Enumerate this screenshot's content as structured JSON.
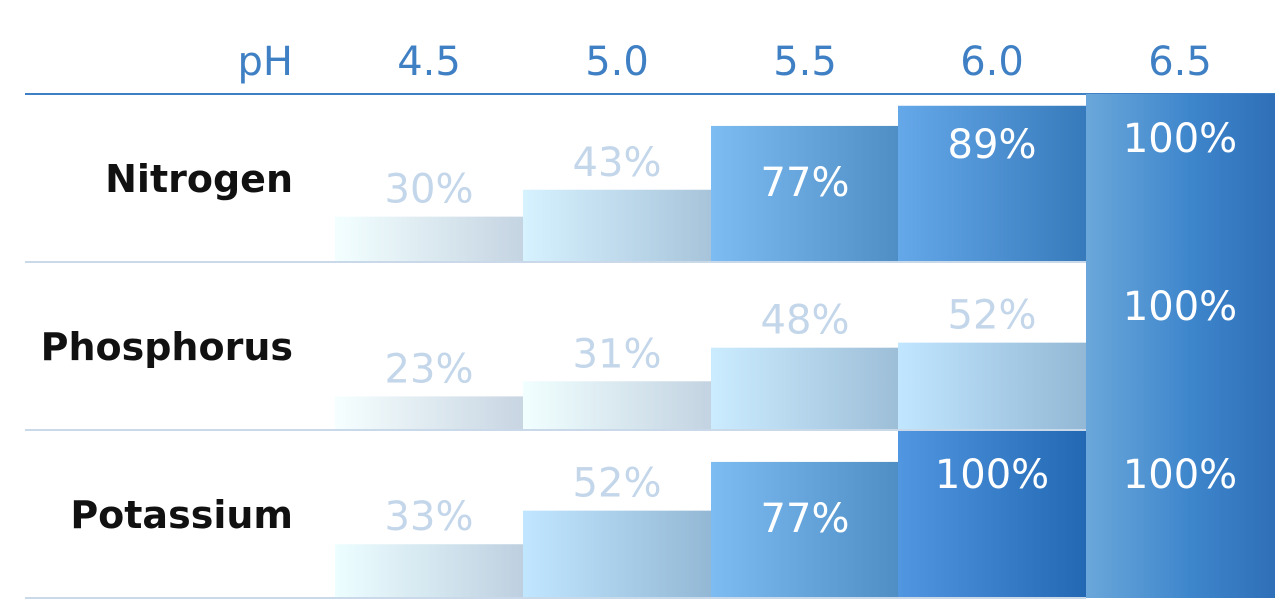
{
  "chart_data": {
    "type": "bar",
    "x_header": "pH",
    "categories": [
      "4.5",
      "5.0",
      "5.5",
      "6.0",
      "6.5"
    ],
    "series": [
      {
        "name": "Nitrogen",
        "values": [
          30,
          43,
          77,
          89,
          100
        ],
        "labels": [
          "30%",
          "43%",
          "77%",
          "89%",
          "100%"
        ]
      },
      {
        "name": "Phosphorus",
        "values": [
          23,
          31,
          48,
          52,
          100
        ],
        "labels": [
          "23%",
          "31%",
          "48%",
          "52%",
          "100%"
        ]
      },
      {
        "name": "Potassium",
        "values": [
          33,
          52,
          77,
          100,
          100
        ],
        "labels": [
          "33%",
          "52%",
          "77%",
          "100%",
          "100%"
        ]
      }
    ],
    "unit": "%",
    "ylim": [
      0,
      100
    ],
    "grid": false,
    "colors": {
      "accent": "#3f7fc4",
      "header_text": "#3f7fc4",
      "row_label_text": "#111111",
      "faint_label_text": "#c3d6ea",
      "strong_label_text": "#ffffff",
      "divider": "#3f7fc4",
      "row_divider": "#c9d9ea"
    }
  }
}
